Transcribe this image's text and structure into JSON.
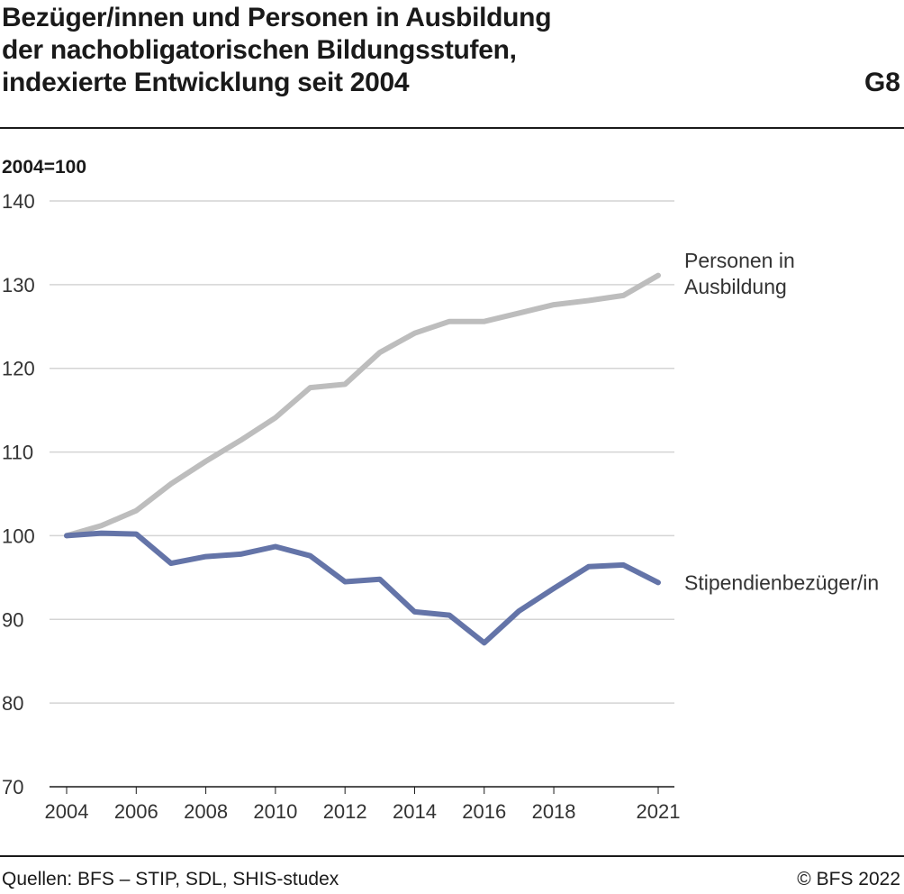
{
  "chart_data": {
    "type": "line",
    "title_lines": [
      "Bezüger/innen und Personen in Ausbildung",
      "der nachobligatorischen Bildungsstufen,",
      "indexierte Entwicklung seit 2004"
    ],
    "figure_number": "G8",
    "unit_label": "2004=100",
    "ylim": [
      70,
      140
    ],
    "yticks": [
      70,
      80,
      90,
      100,
      110,
      120,
      130,
      140
    ],
    "xlim": [
      2004,
      2021
    ],
    "xticks": [
      2004,
      2006,
      2008,
      2010,
      2012,
      2014,
      2016,
      2018,
      2021
    ],
    "grid": true,
    "x": [
      2004,
      2005,
      2006,
      2007,
      2008,
      2009,
      2010,
      2011,
      2012,
      2013,
      2014,
      2015,
      2016,
      2017,
      2018,
      2019,
      2020,
      2021
    ],
    "series": [
      {
        "name": "Personen in Ausbildung",
        "label_lines": [
          "Personen in",
          "Ausbildung"
        ],
        "color": "#bdbdbd",
        "values": [
          100.0,
          101.2,
          103.0,
          106.2,
          108.9,
          111.4,
          114.1,
          117.7,
          118.1,
          121.9,
          124.2,
          125.6,
          125.6,
          126.6,
          127.6,
          128.1,
          128.7,
          131.1
        ]
      },
      {
        "name": "Stipendienbezüger/in",
        "label_lines": [
          "Stipendienbezüger/in"
        ],
        "color": "#6474a8",
        "values": [
          100.0,
          100.3,
          100.2,
          96.7,
          97.5,
          97.8,
          98.7,
          97.6,
          94.5,
          94.8,
          90.9,
          90.5,
          87.2,
          91.0,
          93.7,
          96.3,
          96.5,
          94.4
        ]
      }
    ]
  },
  "footer": {
    "sources": "Quellen: BFS – STIP, SDL, SHIS-studex",
    "copyright": "© BFS 2022"
  }
}
